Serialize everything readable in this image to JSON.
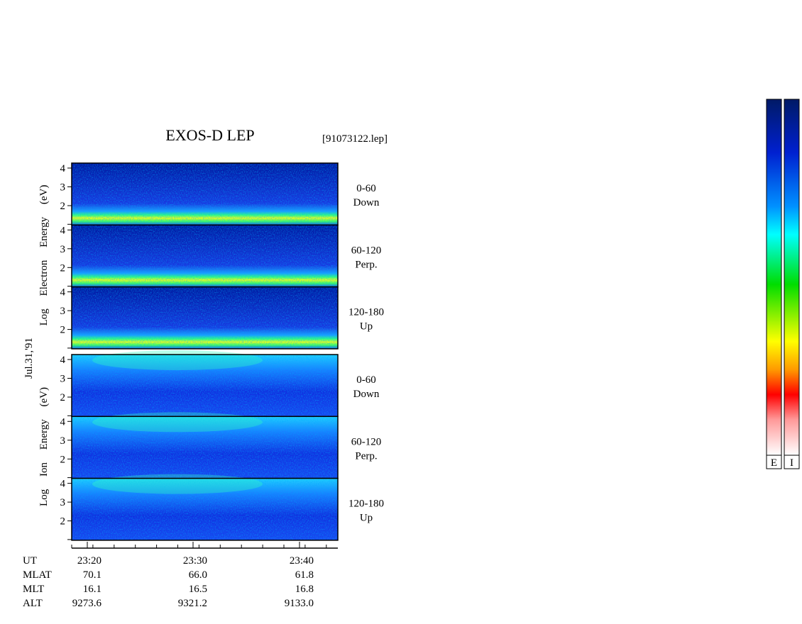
{
  "title": "EXOS-D LEP",
  "file": "[91073122.lep]",
  "date": "Jul.31,'91",
  "groups": [
    {
      "label": "Log Electron Energy (eV)",
      "kind": "electron",
      "panels": [
        {
          "angle": "0-60",
          "direction": "Down",
          "yticks": [
            "4",
            "3",
            "2"
          ]
        },
        {
          "angle": "60-120",
          "direction": "Perp.",
          "yticks": [
            "4",
            "3",
            "2"
          ]
        },
        {
          "angle": "120-180",
          "direction": "Up",
          "yticks": [
            "4",
            "3",
            "2"
          ]
        }
      ]
    },
    {
      "label": "Log Ion Energy (eV)",
      "kind": "ion",
      "panels": [
        {
          "angle": "0-60",
          "direction": "Down",
          "yticks": [
            "4",
            "3",
            "2"
          ]
        },
        {
          "angle": "60-120",
          "direction": "Perp.",
          "yticks": [
            "4",
            "3",
            "2"
          ]
        },
        {
          "angle": "120-180",
          "direction": "Up",
          "yticks": [
            "4",
            "3",
            "2"
          ]
        }
      ]
    }
  ],
  "time_axis": {
    "rows": [
      {
        "name": "UT",
        "values": [
          "23:20",
          "23:30",
          "23:40"
        ]
      },
      {
        "name": "MLAT",
        "values": [
          "70.1",
          "66.0",
          "61.8"
        ]
      },
      {
        "name": "MLT",
        "values": [
          "16.1",
          "16.5",
          "16.8"
        ]
      },
      {
        "name": "ALT",
        "values": [
          "9273.6",
          "9321.2",
          "9133.0"
        ]
      }
    ]
  },
  "colorbars": [
    "E",
    "I"
  ]
}
